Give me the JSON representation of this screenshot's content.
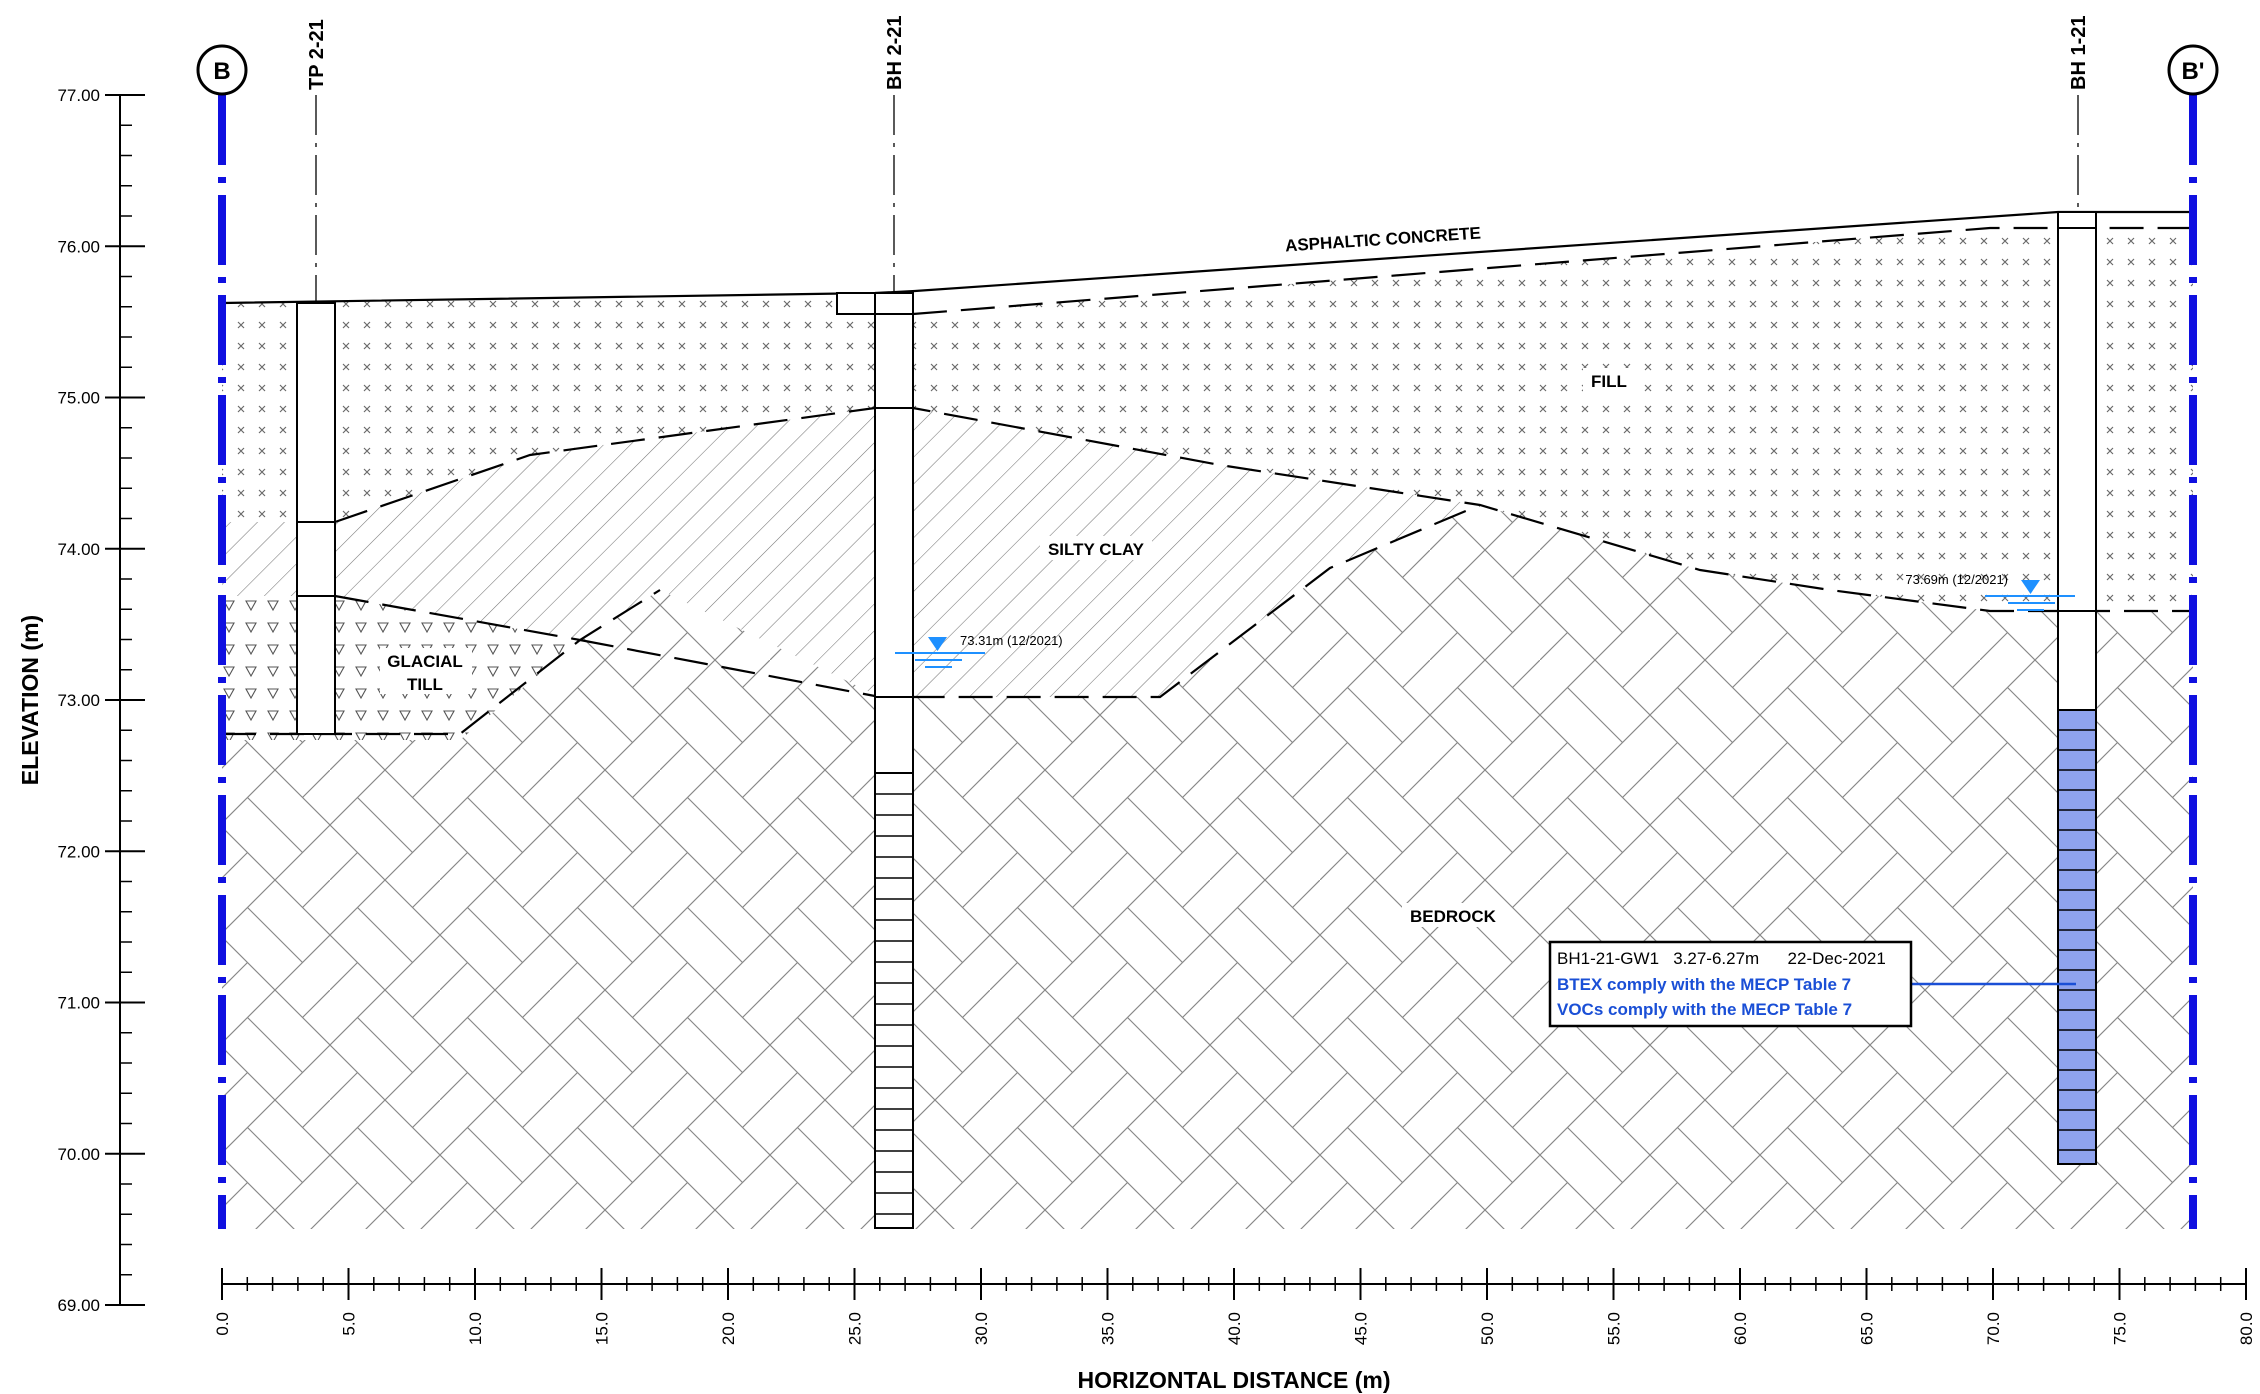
{
  "axes": {
    "y_title": "ELEVATION (m)",
    "x_title": "HORIZONTAL DISTANCE (m)",
    "y_ticks": [
      "77.00",
      "76.00",
      "75.00",
      "74.00",
      "73.00",
      "72.00",
      "71.00",
      "70.00",
      "69.00"
    ],
    "x_ticks": [
      "0.0",
      "5.0",
      "10.0",
      "15.0",
      "20.0",
      "25.0",
      "30.0",
      "35.0",
      "40.0",
      "45.0",
      "50.0",
      "55.0",
      "60.0",
      "65.0",
      "70.0",
      "75.0",
      "80.0"
    ]
  },
  "section_markers": {
    "start": "B",
    "end": "B'"
  },
  "boreholes": [
    {
      "id": "TP 2-21"
    },
    {
      "id": "BH 2-21"
    },
    {
      "id": "BH 1-21"
    }
  ],
  "soil_labels": {
    "asphalt": "ASPHALTIC CONCRETE",
    "fill": "FILL",
    "silty_clay": "SILTY CLAY",
    "glacial_till_1": "GLACIAL",
    "glacial_till_2": "TILL",
    "bedrock": "BEDROCK"
  },
  "water_levels": [
    {
      "label": "73.31m (12/2021)",
      "elevation": 73.31
    },
    {
      "label": "73.69m (12/2021)",
      "elevation": 73.69
    }
  ],
  "sample_note": {
    "line1": "BH1-21-GW1   3.27-6.27m      22-Dec-2021",
    "line2": "BTEX comply with the MECP Table 7",
    "line3": "VOCs comply with the MECP Table 7"
  },
  "colors": {
    "section_line": "#1010e0",
    "water_marker": "#1e90ff",
    "screen_fill": "#8fa3ee",
    "note_blue": "#1a4fd6"
  }
}
